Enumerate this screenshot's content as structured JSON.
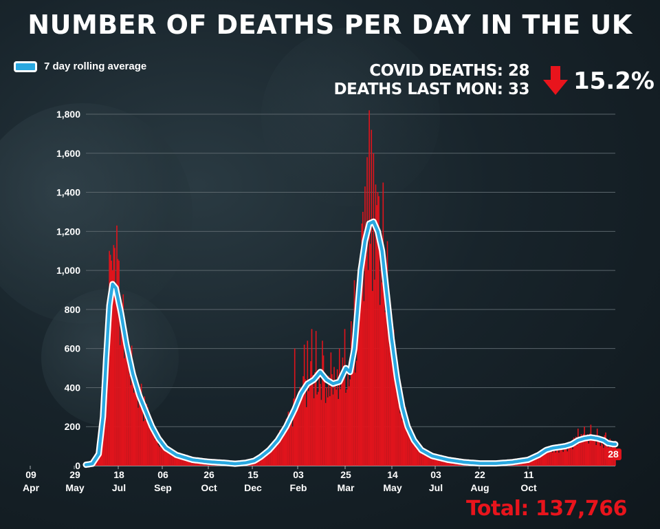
{
  "title": "NUMBER OF DEATHS PER DAY IN THE UK",
  "legend": {
    "label": "7 day rolling average"
  },
  "stats": {
    "covid_deaths": "COVID DEATHS: 28",
    "deaths_last_mon": "DEATHS LAST MON: 33",
    "change": "15.2%"
  },
  "total": "Total: 137,766",
  "colors": {
    "bars": "#e0141c",
    "line": "#29a8e0",
    "line_outline": "#ffffff",
    "grid": "#5b666c",
    "total": "#e8141c"
  },
  "chart_data": {
    "type": "bar",
    "xlabel": "",
    "ylabel": "",
    "ylim": [
      0,
      1800
    ],
    "yticks": [
      "0",
      "200",
      "400",
      "600",
      "800",
      "1,000",
      "1,200",
      "1,400",
      "1,600",
      "1,800"
    ],
    "x_tick_labels": [
      {
        "day": "09",
        "month": "Apr"
      },
      {
        "day": "29",
        "month": "May"
      },
      {
        "day": "18",
        "month": "Jul"
      },
      {
        "day": "06",
        "month": "Sep"
      },
      {
        "day": "26",
        "month": "Oct"
      },
      {
        "day": "15",
        "month": "Dec"
      },
      {
        "day": "03",
        "month": "Feb"
      },
      {
        "day": "25",
        "month": "Mar"
      },
      {
        "day": "14",
        "month": "May"
      },
      {
        "day": "03",
        "month": "Jul"
      },
      {
        "day": "22",
        "month": "Aug"
      },
      {
        "day": "11",
        "month": "Oct"
      }
    ],
    "end_label": "28",
    "series": [
      {
        "name": "7 day rolling average",
        "anchors": [
          [
            0,
            5
          ],
          [
            6,
            10
          ],
          [
            12,
            60
          ],
          [
            16,
            250
          ],
          [
            19,
            550
          ],
          [
            22,
            820
          ],
          [
            25,
            930
          ],
          [
            28,
            910
          ],
          [
            33,
            780
          ],
          [
            38,
            620
          ],
          [
            44,
            470
          ],
          [
            50,
            360
          ],
          [
            56,
            280
          ],
          [
            62,
            200
          ],
          [
            68,
            140
          ],
          [
            75,
            90
          ],
          [
            85,
            55
          ],
          [
            100,
            30
          ],
          [
            115,
            20
          ],
          [
            130,
            15
          ],
          [
            140,
            10
          ],
          [
            150,
            15
          ],
          [
            158,
            25
          ],
          [
            164,
            45
          ],
          [
            172,
            80
          ],
          [
            180,
            130
          ],
          [
            188,
            200
          ],
          [
            196,
            290
          ],
          [
            202,
            370
          ],
          [
            208,
            420
          ],
          [
            214,
            440
          ],
          [
            220,
            480
          ],
          [
            226,
            440
          ],
          [
            232,
            420
          ],
          [
            238,
            430
          ],
          [
            244,
            500
          ],
          [
            248,
            480
          ],
          [
            252,
            600
          ],
          [
            255,
            800
          ],
          [
            258,
            1000
          ],
          [
            262,
            1150
          ],
          [
            266,
            1240
          ],
          [
            270,
            1250
          ],
          [
            274,
            1200
          ],
          [
            278,
            1100
          ],
          [
            282,
            900
          ],
          [
            287,
            650
          ],
          [
            292,
            450
          ],
          [
            297,
            300
          ],
          [
            302,
            200
          ],
          [
            308,
            130
          ],
          [
            315,
            80
          ],
          [
            325,
            50
          ],
          [
            340,
            30
          ],
          [
            355,
            18
          ],
          [
            370,
            12
          ],
          [
            385,
            12
          ],
          [
            400,
            18
          ],
          [
            415,
            30
          ],
          [
            425,
            55
          ],
          [
            432,
            80
          ],
          [
            438,
            90
          ],
          [
            444,
            95
          ],
          [
            450,
            100
          ],
          [
            456,
            110
          ],
          [
            462,
            130
          ],
          [
            468,
            140
          ],
          [
            474,
            145
          ],
          [
            480,
            140
          ],
          [
            486,
            130
          ],
          [
            490,
            115
          ],
          [
            495,
            110
          ],
          [
            497,
            110
          ]
        ]
      },
      {
        "name": "Daily deaths",
        "spikes": [
          [
            22,
            1100
          ],
          [
            23,
            1080
          ],
          [
            24,
            1050
          ],
          [
            25,
            1000
          ],
          [
            26,
            1130
          ],
          [
            28,
            900
          ],
          [
            29,
            1230
          ],
          [
            31,
            1050
          ],
          [
            34,
            830
          ],
          [
            40,
            620
          ],
          [
            46,
            470
          ],
          [
            52,
            420
          ],
          [
            58,
            300
          ],
          [
            196,
            600
          ],
          [
            205,
            620
          ],
          [
            208,
            640
          ],
          [
            212,
            700
          ],
          [
            216,
            690
          ],
          [
            222,
            640
          ],
          [
            230,
            580
          ],
          [
            238,
            600
          ],
          [
            243,
            700
          ],
          [
            249,
            740
          ],
          [
            252,
            950
          ],
          [
            256,
            980
          ],
          [
            260,
            1300
          ],
          [
            262,
            1430
          ],
          [
            264,
            1580
          ],
          [
            266,
            1820
          ],
          [
            268,
            1720
          ],
          [
            270,
            1600
          ],
          [
            272,
            1440
          ],
          [
            275,
            1380
          ],
          [
            279,
            1450
          ],
          [
            283,
            1150
          ],
          [
            288,
            700
          ],
          [
            294,
            460
          ],
          [
            300,
            300
          ],
          [
            462,
            190
          ],
          [
            468,
            200
          ],
          [
            474,
            210
          ],
          [
            480,
            190
          ],
          [
            488,
            170
          ]
        ]
      }
    ]
  }
}
